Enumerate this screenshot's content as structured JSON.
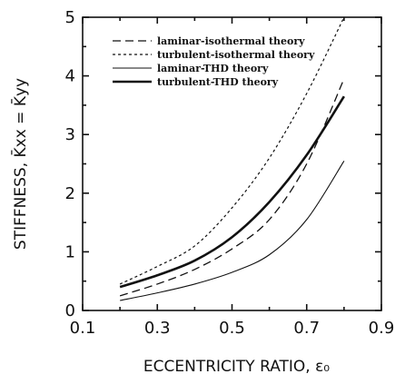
{
  "chart_data": {
    "type": "line",
    "xlabel": "ECCENTRICITY RATIO, ε₀",
    "ylabel": "STIFFNESS, K̄xx = K̄yy",
    "xlim": [
      0.1,
      0.9
    ],
    "ylim": [
      0,
      5
    ],
    "xticks": [
      "0.1",
      "0.3",
      "0.5",
      "0.7",
      "0.9"
    ],
    "yticks": [
      "0",
      "1",
      "2",
      "3",
      "4",
      "5"
    ],
    "grid": false,
    "legend_position": "top-left",
    "series": [
      {
        "name": "laminar-isothermal theory",
        "style": "long-dash",
        "x": [
          0.2,
          0.3,
          0.4,
          0.5,
          0.6,
          0.7,
          0.8
        ],
        "y": [
          0.25,
          0.45,
          0.7,
          1.05,
          1.55,
          2.5,
          3.95
        ]
      },
      {
        "name": "turbulent-isothermal theory",
        "style": "short-dash",
        "x": [
          0.2,
          0.3,
          0.4,
          0.5,
          0.6,
          0.7,
          0.8
        ],
        "y": [
          0.45,
          0.75,
          1.1,
          1.75,
          2.6,
          3.7,
          5.0
        ]
      },
      {
        "name": "laminar-THD theory",
        "style": "thin-solid",
        "x": [
          0.2,
          0.3,
          0.4,
          0.5,
          0.6,
          0.7,
          0.8
        ],
        "y": [
          0.17,
          0.3,
          0.45,
          0.65,
          0.95,
          1.55,
          2.55
        ]
      },
      {
        "name": "turbulent-THD theory",
        "style": "thick-solid",
        "x": [
          0.2,
          0.3,
          0.4,
          0.5,
          0.6,
          0.7,
          0.8
        ],
        "y": [
          0.4,
          0.6,
          0.85,
          1.25,
          1.85,
          2.65,
          3.65
        ]
      }
    ]
  }
}
